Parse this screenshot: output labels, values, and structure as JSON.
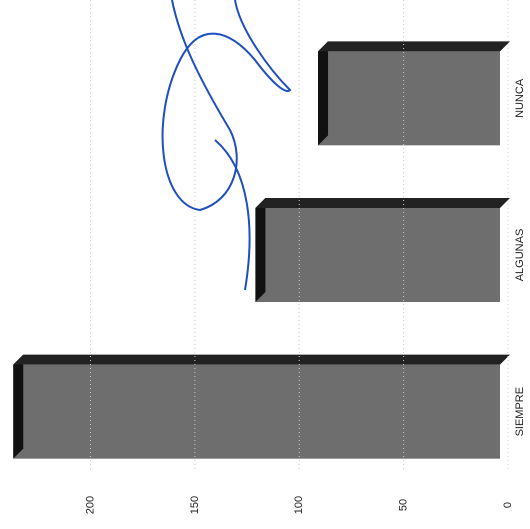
{
  "chart_data": {
    "type": "bar",
    "orientation": "horizontal",
    "categories": [
      "SIEMPRE",
      "ALGUNAS",
      "NUNCA"
    ],
    "values": [
      237,
      121,
      91
    ],
    "color": "#6e6e6e",
    "ylim": [
      0,
      240
    ],
    "yticks": [
      0,
      50,
      100,
      150,
      200
    ],
    "grid": true
  }
}
